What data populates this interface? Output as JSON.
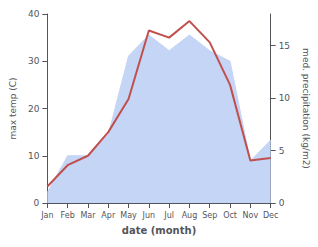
{
  "chart_data": {
    "type": "line",
    "xlabel": "date (month)",
    "ylabel": "max temp (C)",
    "y2label": "med. precipitation (kg/m2)",
    "categories": [
      "Jan",
      "Feb",
      "Mar",
      "Apr",
      "May",
      "Jun",
      "Jul",
      "Aug",
      "Sep",
      "Oct",
      "Nov",
      "Dec"
    ],
    "series": [
      {
        "type": "area",
        "axis": "y2",
        "color": "#c5d5f5",
        "values": [
          1.0,
          4.5,
          4.5,
          6.5,
          14.0,
          16.0,
          14.5,
          16.0,
          14.5,
          13.5,
          4.0,
          6.0
        ]
      },
      {
        "type": "line",
        "color": "#c0504d",
        "values": [
          3.5,
          8.0,
          10.0,
          15.0,
          22.0,
          36.5,
          35.0,
          38.5,
          34.0,
          25.0,
          9.0,
          9.5
        ]
      }
    ],
    "ylim": [
      0,
      40
    ],
    "yticks": [
      0,
      10,
      20,
      30,
      40
    ],
    "y2lim": [
      0,
      18
    ],
    "y2ticks": [
      0,
      5,
      10,
      15
    ],
    "grid": false
  }
}
